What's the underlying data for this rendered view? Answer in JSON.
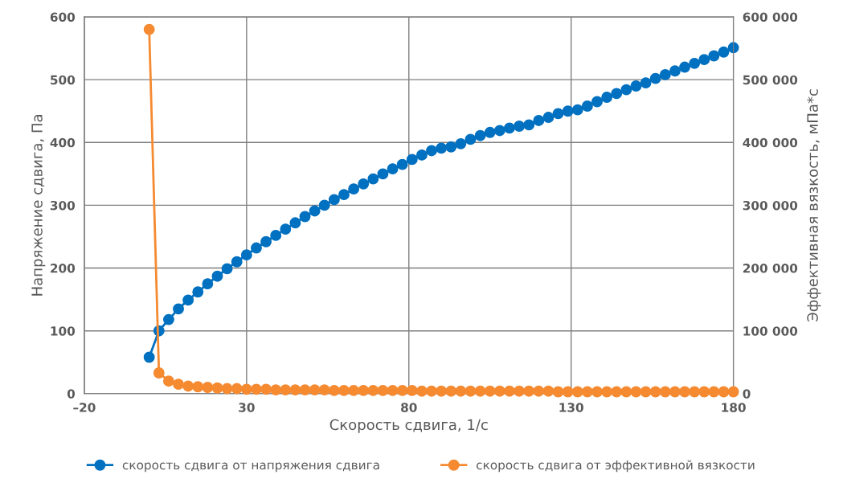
{
  "chart_data": {
    "type": "line",
    "xlabel": "Скорость сдвига, 1/с",
    "ylabel": "Напряжение сдвига, Па",
    "y2label": "Эффективная вязкость, мПа*с",
    "x": [
      0,
      3,
      6,
      9,
      12,
      15,
      18,
      21,
      24,
      27,
      30,
      33,
      36,
      39,
      42,
      45,
      48,
      51,
      54,
      57,
      60,
      63,
      66,
      69,
      72,
      75,
      78,
      81,
      84,
      87,
      90,
      93,
      96,
      99,
      102,
      105,
      108,
      111,
      114,
      117,
      120,
      123,
      126,
      129,
      132,
      135,
      138,
      141,
      144,
      147,
      150,
      153,
      156,
      159,
      162,
      165,
      168,
      171,
      174,
      177,
      180
    ],
    "xlim": [
      -20,
      180
    ],
    "xticks": [
      {
        "value": -20,
        "label": "–20"
      },
      30,
      80,
      130,
      180
    ],
    "ylim": [
      0,
      600
    ],
    "yticks": [
      0,
      100,
      200,
      300,
      400,
      500,
      600
    ],
    "y2lim": [
      0,
      600000
    ],
    "y2ticks": [
      {
        "value": 0,
        "label": "0"
      },
      {
        "value": 100000,
        "label": "100 000"
      },
      {
        "value": 200000,
        "label": "200 000"
      },
      {
        "value": 300000,
        "label": "300 000"
      },
      {
        "value": 400000,
        "label": "400 000"
      },
      {
        "value": 500000,
        "label": "500 000"
      },
      {
        "value": 600000,
        "label": "600 000"
      }
    ],
    "grid": true,
    "legend": "bottom",
    "marker": "circle",
    "line_style": "solid",
    "series": [
      {
        "name": "скорость сдвига от напряжения сдвига",
        "color": "#0070c0",
        "values": [
          58,
          100,
          118,
          135,
          149,
          162,
          175,
          187,
          199,
          210,
          221,
          232,
          242,
          252,
          262,
          272,
          282,
          291,
          300,
          309,
          317,
          326,
          334,
          342,
          350,
          358,
          365,
          373,
          380,
          387,
          391,
          393,
          398,
          405,
          411,
          416,
          419,
          423,
          426,
          428,
          435,
          440,
          446,
          450,
          452,
          458,
          465,
          472,
          478,
          484,
          490,
          495,
          502,
          508,
          514,
          520,
          526,
          532,
          538,
          544,
          551
        ]
      },
      {
        "name": "скорость сдвига от эффективной вязкости",
        "color": "#f58a31",
        "axis": "y2",
        "values": [
          580000,
          33000,
          20000,
          15000,
          12000,
          11000,
          10000,
          9000,
          8000,
          8000,
          7000,
          7000,
          7000,
          6000,
          6000,
          6000,
          6000,
          6000,
          6000,
          5000,
          5000,
          5000,
          5000,
          5000,
          5000,
          5000,
          5000,
          5000,
          4000,
          4000,
          4000,
          4000,
          4000,
          4000,
          4000,
          4000,
          4000,
          4000,
          4000,
          4000,
          4000,
          4000,
          3000,
          3000,
          3000,
          3000,
          3000,
          3000,
          3000,
          3000,
          3000,
          3000,
          3000,
          3000,
          3000,
          3000,
          3000,
          3000,
          3000,
          3000,
          3000
        ]
      }
    ]
  }
}
